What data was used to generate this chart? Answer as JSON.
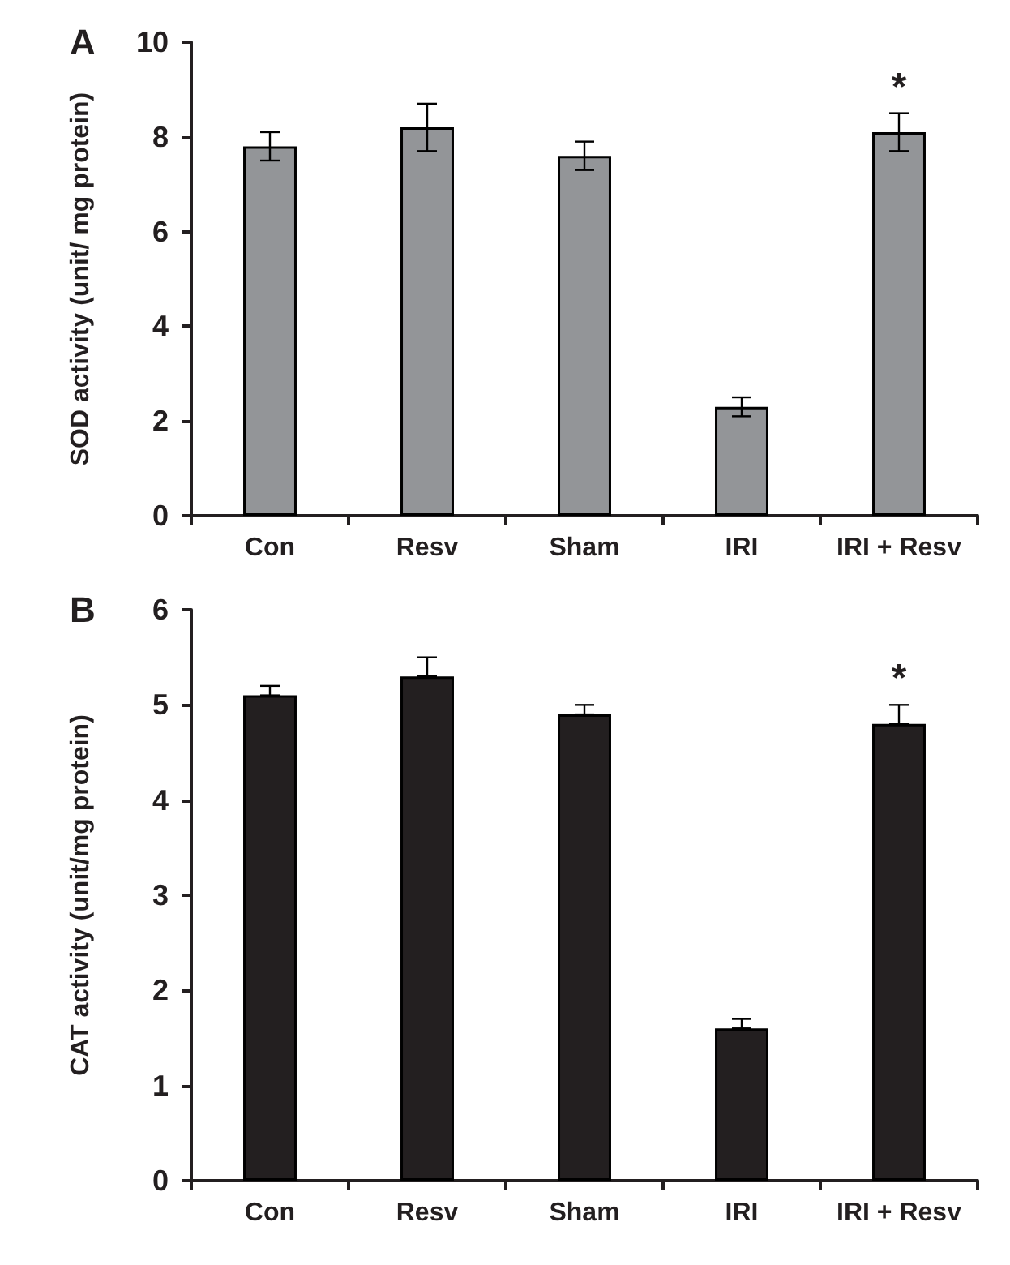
{
  "chart_data": [
    {
      "type": "bar",
      "title": "A",
      "ylabel": "SOD activity (unit/ mg protein)",
      "categories": [
        "Con",
        "Resv",
        "Sham",
        "IRI",
        "IRI + Resv"
      ],
      "values": [
        7.8,
        8.2,
        7.6,
        2.3,
        8.1
      ],
      "errors": [
        0.3,
        0.5,
        0.3,
        0.2,
        0.4
      ],
      "color": "#939598",
      "ylim": [
        0,
        10
      ],
      "yticks": [
        0,
        2,
        4,
        6,
        8,
        10
      ],
      "grid": false,
      "annotations": [
        "*"
      ]
    },
    {
      "type": "bar",
      "title": "B",
      "ylabel": "CAT activity (unit/mg protein)",
      "categories": [
        "Con",
        "Resv",
        "Sham",
        "IRI",
        "IRI + Resv"
      ],
      "values": [
        5.1,
        5.3,
        4.9,
        1.6,
        4.8
      ],
      "errors": [
        [
          5.1,
          5.2
        ],
        [
          5.3,
          5.5
        ],
        [
          4.9,
          5.0
        ],
        [
          1.6,
          1.7
        ],
        [
          4.8,
          5.0
        ]
      ],
      "color": "#231f20",
      "ylim": [
        0,
        6
      ],
      "yticks": [
        0,
        1,
        2,
        3,
        4,
        5,
        6
      ],
      "grid": false,
      "annotations": [
        "*"
      ]
    }
  ]
}
